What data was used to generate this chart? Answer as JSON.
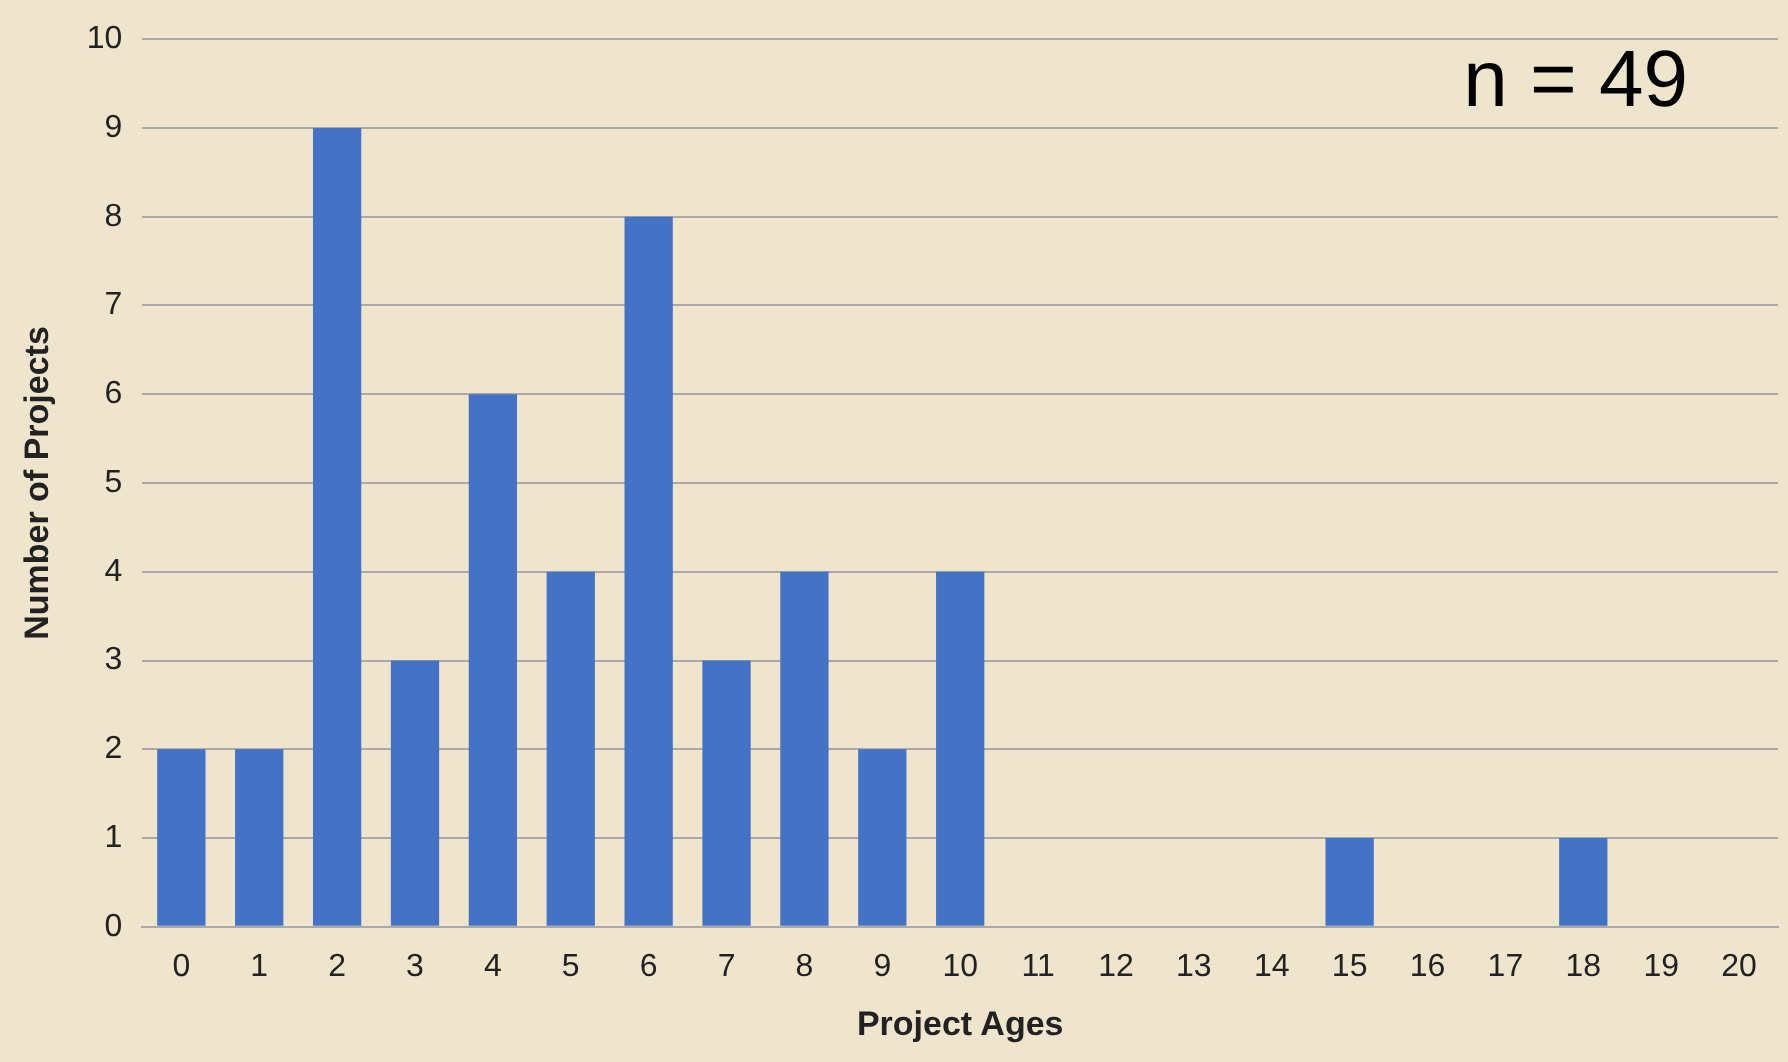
{
  "chart_data": {
    "type": "bar",
    "xlabel": "Project Ages",
    "ylabel": "Number of Projects",
    "categories": [
      "0",
      "1",
      "2",
      "3",
      "4",
      "5",
      "6",
      "7",
      "8",
      "9",
      "10",
      "11",
      "12",
      "13",
      "14",
      "15",
      "16",
      "17",
      "18",
      "19",
      "20"
    ],
    "values": [
      2,
      2,
      9,
      3,
      6,
      4,
      8,
      3,
      4,
      2,
      4,
      0,
      0,
      0,
      0,
      1,
      0,
      0,
      1,
      0,
      0
    ],
    "color": "#4472c4",
    "ylim": [
      0,
      10
    ],
    "yticks": [
      0,
      1,
      2,
      3,
      4,
      5,
      6,
      7,
      8,
      9,
      10
    ],
    "grid": "y",
    "legend": false,
    "annotations": [
      "n = 49"
    ]
  }
}
